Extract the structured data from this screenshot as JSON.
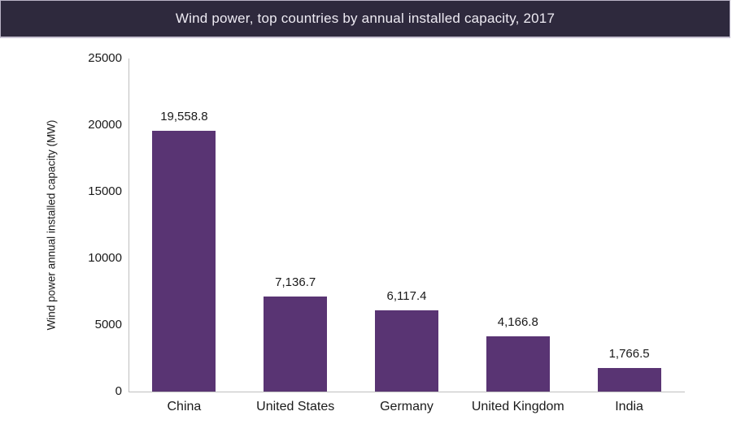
{
  "header": {
    "title": "Wind power, top countries by annual installed capacity, 2017"
  },
  "colors": {
    "header_bg": "#2e293d",
    "header_text": "#eeebf3",
    "header_border": "#c9c3d3",
    "bar_fill": "#593473",
    "axis_line": "#bfbfbf",
    "label_text": "#1a1a1a"
  },
  "chart_data": {
    "type": "bar",
    "title": "Wind power, top countries by annual installed capacity, 2017",
    "categories": [
      "China",
      "United States",
      "Germany",
      "United Kingdom",
      "India"
    ],
    "values": [
      19558.8,
      7136.7,
      6117.4,
      4166.8,
      1766.5
    ],
    "value_labels": [
      "19,558.8",
      "7,136.7",
      "6,117.4",
      "4,166.8",
      "1,766.5"
    ],
    "xlabel": "",
    "ylabel": "Wind power annual installed capacity (MW)",
    "ylim": [
      0,
      25000
    ],
    "yticks": [
      0,
      5000,
      10000,
      15000,
      20000,
      25000
    ],
    "ytick_labels": [
      "0",
      "5000",
      "10000",
      "15000",
      "20000",
      "25000"
    ],
    "grid": false,
    "legend": false,
    "bar_color": "#593473"
  }
}
